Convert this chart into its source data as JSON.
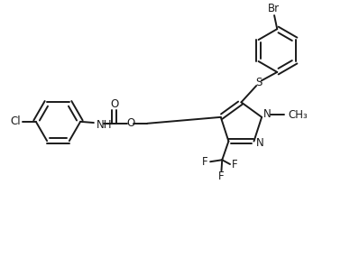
{
  "bg_color": "#ffffff",
  "line_color": "#1a1a1a",
  "lw": 1.4,
  "figsize": [
    3.98,
    2.86
  ],
  "dpi": 100,
  "xlim": [
    0,
    10
  ],
  "ylim": [
    0,
    7.15
  ],
  "fs": 8.5
}
